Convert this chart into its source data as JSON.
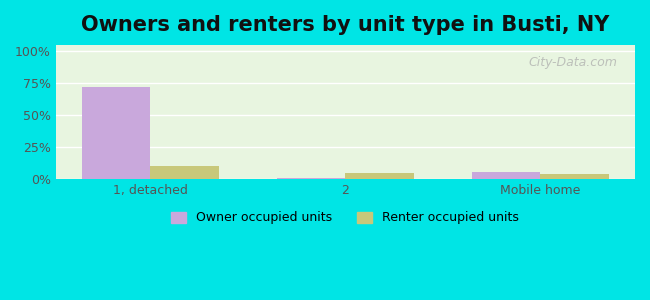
{
  "title": "Owners and renters by unit type in Busti, NY",
  "categories": [
    "1, detached",
    "2",
    "Mobile home"
  ],
  "owner_values": [
    72,
    1,
    6
  ],
  "renter_values": [
    10,
    5,
    4
  ],
  "owner_color": "#c9a8dc",
  "renter_color": "#c8c87a",
  "yticks": [
    0,
    25,
    50,
    75,
    100
  ],
  "ytick_labels": [
    "0%",
    "25%",
    "50%",
    "75%",
    "100%"
  ],
  "ylim": [
    0,
    105
  ],
  "background_top": "#e8f5e0",
  "background_bottom": "#f5fff5",
  "outer_color": "#00e5e5",
  "legend_owner": "Owner occupied units",
  "legend_renter": "Renter occupied units",
  "bar_width": 0.35,
  "title_fontsize": 15,
  "watermark": "City-Data.com"
}
